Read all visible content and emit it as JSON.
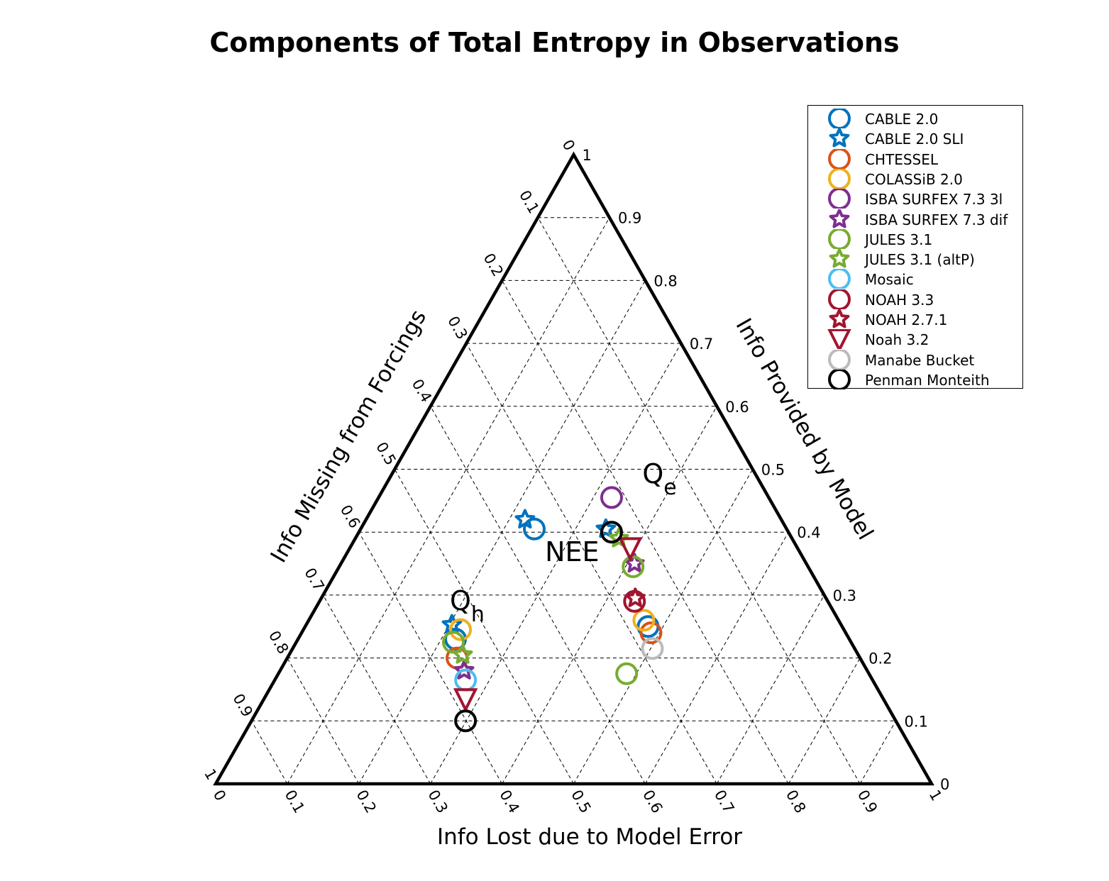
{
  "chart_data": {
    "type": "scatter",
    "subtype": "ternary",
    "title": "Components of Total Entropy in Observations",
    "axes": {
      "bottom": {
        "label": "Info Lost due to Model Error",
        "range": [
          0,
          1
        ],
        "ticks": [
          "0",
          "0.1",
          "0.2",
          "0.3",
          "0.4",
          "0.5",
          "0.6",
          "0.7",
          "0.8",
          "0.9",
          "1"
        ]
      },
      "left": {
        "label": "Info Missing from Forcings",
        "range": [
          0,
          1
        ],
        "ticks": [
          "0",
          "0.1",
          "0.2",
          "0.3",
          "0.4",
          "0.5",
          "0.6",
          "0.7",
          "0.8",
          "0.9",
          "1"
        ]
      },
      "right": {
        "label": "Info Provided by Model",
        "range": [
          0,
          1
        ],
        "ticks": [
          "0",
          "0.1",
          "0.2",
          "0.3",
          "0.4",
          "0.5",
          "0.6",
          "0.7",
          "0.8",
          "0.9",
          "1"
        ]
      }
    },
    "grid": true,
    "legend_position": "top-right",
    "group_labels": [
      {
        "id": "qe",
        "main": "Q",
        "sub": "e",
        "x": 0.596,
        "y": 0.478
      },
      {
        "id": "nee",
        "main": "NEE",
        "sub": "",
        "x": 0.46,
        "y": 0.354
      },
      {
        "id": "qh",
        "main": "Q",
        "sub": "h",
        "x": 0.327,
        "y": 0.276
      }
    ],
    "series": [
      {
        "name": "CABLE 2.0",
        "marker": "circle",
        "color": "#0072BD",
        "points": [
          {
            "group": "Qh",
            "x": 0.335,
            "y": 0.23
          },
          {
            "group": "NEE",
            "x": 0.445,
            "y": 0.405
          },
          {
            "group": "Qe",
            "x": 0.604,
            "y": 0.25
          }
        ]
      },
      {
        "name": "CABLE 2.0 SLI",
        "marker": "star",
        "color": "#0072BD",
        "points": [
          {
            "group": "Qh",
            "x": 0.33,
            "y": 0.253
          },
          {
            "group": "NEE",
            "x": 0.432,
            "y": 0.42
          },
          {
            "group": "Qe",
            "x": 0.545,
            "y": 0.405
          }
        ]
      },
      {
        "name": "CHTESSEL",
        "marker": "circle",
        "color": "#D95319",
        "points": [
          {
            "group": "Qh",
            "x": 0.337,
            "y": 0.2
          },
          {
            "group": "Qe",
            "x": 0.608,
            "y": 0.24
          }
        ]
      },
      {
        "name": "COLASSiB 2.0",
        "marker": "circle",
        "color": "#EDB120",
        "points": [
          {
            "group": "Qh",
            "x": 0.342,
            "y": 0.245
          },
          {
            "group": "Qe",
            "x": 0.598,
            "y": 0.26
          }
        ]
      },
      {
        "name": "ISBA SURFEX 7.3 3l",
        "marker": "circle",
        "color": "#7E2F8E",
        "points": [
          {
            "group": "Qe",
            "x": 0.553,
            "y": 0.455
          }
        ]
      },
      {
        "name": "ISBA SURFEX 7.3 dif",
        "marker": "star",
        "color": "#7E2F8E",
        "points": [
          {
            "group": "Qh",
            "x": 0.347,
            "y": 0.18
          },
          {
            "group": "Qe",
            "x": 0.585,
            "y": 0.35
          }
        ]
      },
      {
        "name": "JULES 3.1",
        "marker": "circle",
        "color": "#77AC30",
        "points": [
          {
            "group": "Qh",
            "x": 0.332,
            "y": 0.225
          },
          {
            "group": "Qe",
            "x": 0.583,
            "y": 0.345
          },
          {
            "group": "Other",
            "x": 0.574,
            "y": 0.175
          }
        ]
      },
      {
        "name": "JULES 3.1 (altP)",
        "marker": "star",
        "color": "#77AC30",
        "points": [
          {
            "group": "Qh",
            "x": 0.345,
            "y": 0.205
          },
          {
            "group": "Qe",
            "x": 0.563,
            "y": 0.39
          }
        ]
      },
      {
        "name": "Mosaic",
        "marker": "circle",
        "color": "#4DBEEE",
        "points": [
          {
            "group": "Qh",
            "x": 0.349,
            "y": 0.165
          }
        ]
      },
      {
        "name": "NOAH 3.3",
        "marker": "circle",
        "color": "#A2142F",
        "points": [
          {
            "group": "Qe",
            "x": 0.585,
            "y": 0.29
          }
        ]
      },
      {
        "name": "NOAH 2.7.1",
        "marker": "star",
        "color": "#A2142F",
        "points": [
          {
            "group": "Qe",
            "x": 0.586,
            "y": 0.295
          }
        ]
      },
      {
        "name": "Noah 3.2",
        "marker": "triangle-down",
        "color": "#A2142F",
        "points": [
          {
            "group": "Qh",
            "x": 0.349,
            "y": 0.135
          },
          {
            "group": "Qe",
            "x": 0.579,
            "y": 0.375
          }
        ]
      },
      {
        "name": "Manabe Bucket",
        "marker": "circle",
        "color": "#BBBBBB",
        "points": [
          {
            "group": "Qe",
            "x": 0.61,
            "y": 0.215
          }
        ]
      },
      {
        "name": "Penman Monteith",
        "marker": "circle",
        "color": "#000000",
        "points": [
          {
            "group": "Qh",
            "x": 0.349,
            "y": 0.1
          },
          {
            "group": "Qe",
            "x": 0.553,
            "y": 0.4
          }
        ]
      }
    ]
  }
}
